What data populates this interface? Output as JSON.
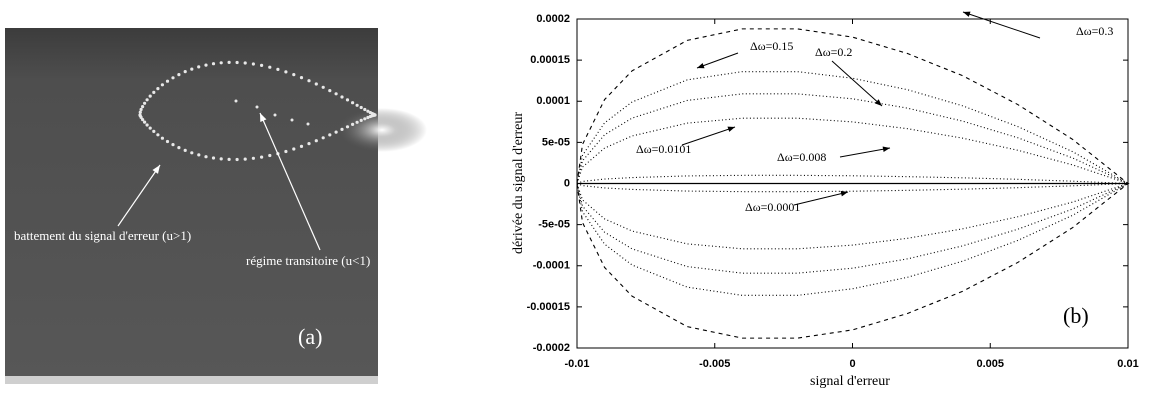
{
  "photo": {
    "annotations": [
      "battement du signal d'erreur (u>1)",
      "régime transitoire (u<1)"
    ],
    "panel_label": "(a)"
  },
  "chart_data": {
    "type": "line",
    "panel_label": "(b)",
    "x_label": "signal d'erreur",
    "y_label": "dérivée du signal d'erreur",
    "xlim": [
      -0.01,
      0.01
    ],
    "ylim": [
      -0.0002,
      0.0002
    ],
    "xticks": [
      -0.01,
      -0.005,
      0,
      0.005,
      0.01
    ],
    "yticks": [
      0.0002,
      0.00015,
      0.0001,
      {
        "value": 5e-05,
        "label": "5e-05"
      },
      0,
      {
        "value": -5e-05,
        "label": "-5e-05"
      },
      -0.0001,
      -0.00015,
      -0.0002
    ],
    "series": [
      {
        "name": "Δω=0.3",
        "color": "#000000",
        "style": "dashed",
        "x": [
          -0.01,
          -0.0098,
          -0.009,
          -0.008,
          -0.006,
          -0.004,
          -0.002,
          0,
          0.002,
          0.004,
          0.006,
          0.008,
          0.01,
          0.008,
          0.006,
          0.004,
          0.002,
          0,
          -0.002,
          -0.004,
          -0.006,
          -0.008,
          -0.009,
          -0.0098,
          -0.01
        ],
        "values": [
          0,
          4.75e-05,
          0.000102,
          0.000137,
          0.000174,
          0.000188,
          0.000188,
          0.000178,
          0.000158,
          0.000131,
          9.6e-05,
          5.34e-05,
          0,
          -5.34e-05,
          -9.6e-05,
          -0.000131,
          -0.000158,
          -0.000178,
          -0.000188,
          -0.000188,
          -0.000174,
          -0.000137,
          -0.000102,
          -4.75e-05,
          0
        ]
      },
      {
        "name": "Δω=0.15",
        "color": "#000000",
        "style": "dotted",
        "x": [
          -0.01,
          -0.0098,
          -0.009,
          -0.008,
          -0.006,
          -0.004,
          -0.002,
          0,
          0.002,
          0.004,
          0.006,
          0.008,
          0.01,
          0.008,
          0.006,
          0.004,
          0.002,
          0,
          -0.002,
          -0.004,
          -0.006,
          -0.008,
          -0.009,
          -0.0098,
          -0.01
        ],
        "values": [
          0,
          3.43e-05,
          7.37e-05,
          9.91e-05,
          0.000126,
          0.000136,
          0.000136,
          0.000128,
          0.000114,
          9.44e-05,
          6.92e-05,
          3.85e-05,
          0,
          -3.85e-05,
          -6.92e-05,
          -9.44e-05,
          -0.000114,
          -0.000128,
          -0.000136,
          -0.000136,
          -0.000126,
          -9.91e-05,
          -7.37e-05,
          -3.43e-05,
          0
        ]
      },
      {
        "name": "Δω=0.2",
        "color": "#000000",
        "style": "dotted",
        "x": [
          -0.01,
          -0.0098,
          -0.009,
          -0.008,
          -0.006,
          -0.004,
          -0.002,
          0,
          0.002,
          0.004,
          0.006,
          0.008,
          0.01,
          0.008,
          0.006,
          0.004,
          0.002,
          0,
          -0.002,
          -0.004,
          -0.006,
          -0.008,
          -0.009,
          -0.0098,
          -0.01
        ],
        "values": [
          0,
          2.75e-05,
          5.92e-05,
          7.95e-05,
          0.000101,
          0.000109,
          0.000109,
          0.000103,
          9.16e-05,
          7.58e-05,
          5.56e-05,
          3.09e-05,
          0,
          -3.09e-05,
          -5.56e-05,
          -7.58e-05,
          -9.16e-05,
          -0.000103,
          -0.000109,
          -0.000109,
          -0.000101,
          -7.95e-05,
          -5.92e-05,
          -2.75e-05,
          0
        ]
      },
      {
        "name": "Δω=0.0101",
        "color": "#000000",
        "style": "dotted",
        "x": [
          -0.01,
          -0.0098,
          -0.009,
          -0.008,
          -0.006,
          -0.004,
          -0.002,
          0,
          0.002,
          0.004,
          0.006,
          0.008,
          0.01,
          0.008,
          0.006,
          0.004,
          0.002,
          0,
          -0.002,
          -0.004,
          -0.006,
          -0.008,
          -0.009,
          -0.0098,
          -0.01
        ],
        "values": [
          0,
          2e-05,
          4.3e-05,
          5.78e-05,
          7.34e-05,
          7.94e-05,
          7.94e-05,
          7.49e-05,
          6.66e-05,
          5.51e-05,
          4.04e-05,
          2.25e-05,
          0,
          -2.25e-05,
          -4.04e-05,
          -5.51e-05,
          -6.66e-05,
          -7.49e-05,
          -7.94e-05,
          -7.94e-05,
          -7.34e-05,
          -5.78e-05,
          -4.3e-05,
          -2e-05,
          0
        ]
      },
      {
        "name": "Δω=0.008",
        "color": "#000000",
        "style": "dotted",
        "x": [
          -0.01,
          -0.0098,
          -0.009,
          -0.008,
          -0.006,
          -0.004,
          -0.002,
          0,
          0.002,
          0.004,
          0.006,
          0.008,
          0.01,
          0.008,
          0.006,
          0.004,
          0.002,
          0,
          -0.002,
          -0.004,
          -0.006,
          -0.008,
          -0.009,
          -0.0098,
          -0.01
        ],
        "values": [
          0,
          2.5e-06,
          5.4e-06,
          7.2e-06,
          9.2e-06,
          9.9e-06,
          9.9e-06,
          9.4e-06,
          8.3e-06,
          6.9e-06,
          5.1e-06,
          2.8e-06,
          0,
          -2.8e-06,
          -5.1e-06,
          -6.9e-06,
          -8.3e-06,
          -9.4e-06,
          -9.9e-06,
          -9.9e-06,
          -9.2e-06,
          -7.2e-06,
          -5.4e-06,
          -2.5e-06,
          0
        ]
      },
      {
        "name": "Δω=0.0001",
        "color": "#000000",
        "style": "solid",
        "x": [
          -0.01,
          0.01
        ],
        "values": [
          0,
          0
        ]
      }
    ]
  }
}
